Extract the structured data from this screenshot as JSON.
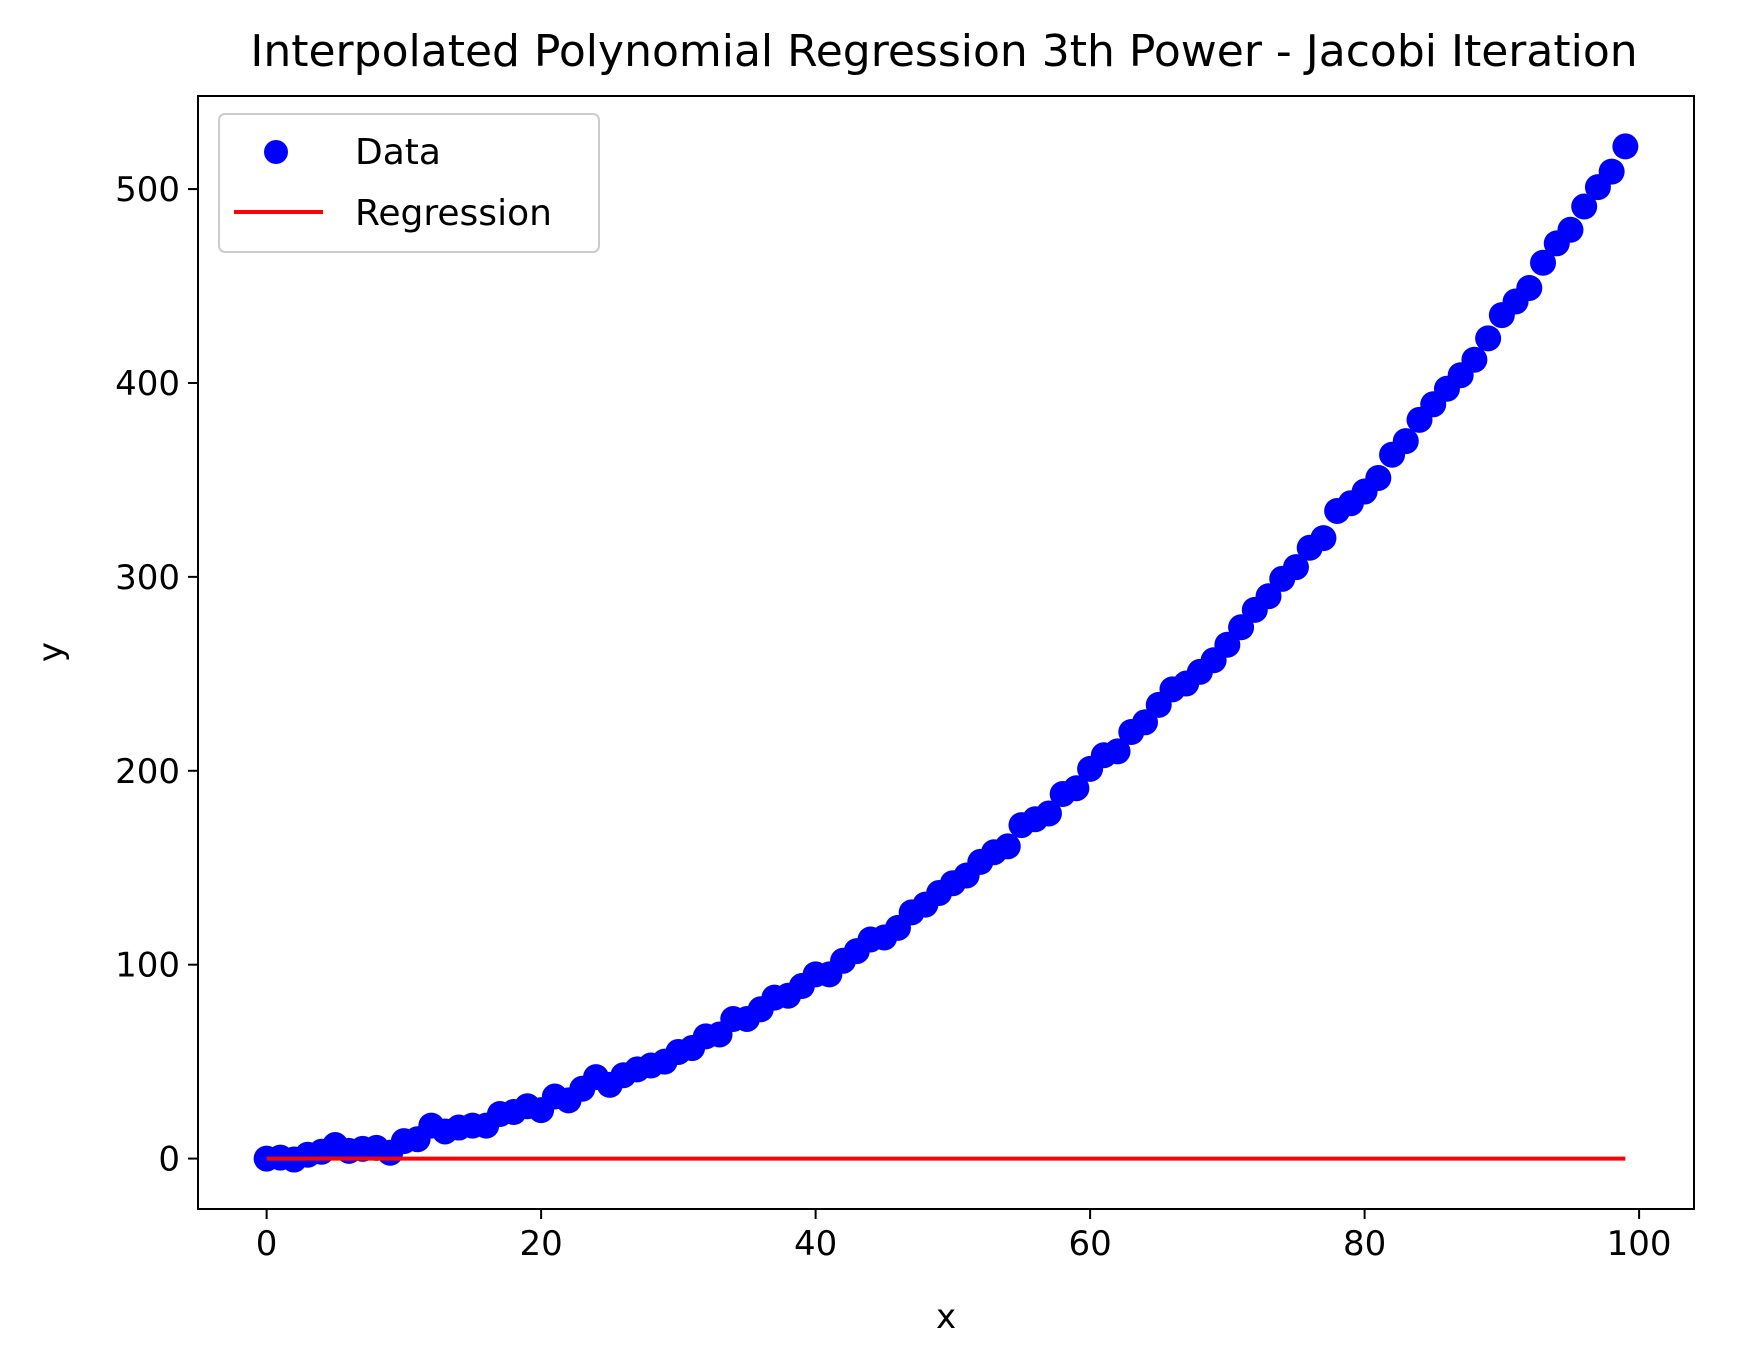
{
  "chart_data": {
    "type": "scatter",
    "title": "Interpolated Polynomial Regression 3th Power - Jacobi Iteration",
    "xlabel": "x",
    "ylabel": "y",
    "xlim": [
      -5,
      104
    ],
    "ylim": [
      -26,
      548
    ],
    "xticks": [
      0,
      20,
      40,
      60,
      80,
      100
    ],
    "yticks": [
      0,
      100,
      200,
      300,
      400,
      500
    ],
    "xtick_labels": [
      "0",
      "20",
      "40",
      "60",
      "80",
      "100"
    ],
    "ytick_labels": [
      "0",
      "100",
      "200",
      "300",
      "400",
      "500"
    ],
    "grid": false,
    "legend_position": "upper-left",
    "legend": [
      {
        "label": "Data",
        "kind": "marker",
        "color": "#0000ff"
      },
      {
        "label": "Regression",
        "kind": "line",
        "color": "#ff0000"
      }
    ],
    "series": [
      {
        "name": "Data",
        "kind": "scatter",
        "color": "#0000ff",
        "x": [
          0,
          1,
          2,
          3,
          4,
          5,
          6,
          7,
          8,
          9,
          10,
          11,
          12,
          13,
          14,
          15,
          16,
          17,
          18,
          19,
          20,
          21,
          22,
          23,
          24,
          25,
          26,
          27,
          28,
          29,
          30,
          31,
          32,
          33,
          34,
          35,
          36,
          37,
          38,
          39,
          40,
          41,
          42,
          43,
          44,
          45,
          46,
          47,
          48,
          49,
          50,
          51,
          52,
          53,
          54,
          55,
          56,
          57,
          58,
          59,
          60,
          61,
          62,
          63,
          64,
          65,
          66,
          67,
          68,
          69,
          70,
          71,
          72,
          73,
          74,
          75,
          76,
          77,
          78,
          79,
          80,
          81,
          82,
          83,
          84,
          85,
          86,
          87,
          88,
          89,
          90,
          91,
          92,
          93,
          94,
          95,
          96,
          97,
          98,
          99
        ],
        "y": [
          0,
          0.5,
          -0.5,
          2,
          3.5,
          7,
          4,
          5,
          5.5,
          3,
          9,
          10,
          17,
          14,
          16,
          17,
          17,
          23,
          24,
          27,
          25,
          32,
          30,
          36,
          42,
          38,
          43,
          46,
          48,
          50,
          55,
          57,
          63,
          64,
          72,
          72,
          77,
          83,
          84,
          89,
          95,
          95,
          102,
          107,
          113,
          114,
          119,
          127,
          131,
          137,
          142,
          146,
          153,
          158,
          161,
          172,
          175,
          178,
          188,
          191,
          201,
          208,
          210,
          220,
          225,
          234,
          242,
          245,
          251,
          257,
          265,
          274,
          283,
          290,
          299,
          305,
          315,
          320,
          334,
          338,
          344,
          351,
          363,
          370,
          381,
          389,
          397,
          404,
          412,
          423,
          435,
          442,
          449,
          462,
          472,
          479,
          491,
          501,
          509,
          522
        ]
      },
      {
        "name": "Regression",
        "kind": "line",
        "color": "#ff0000",
        "x": [
          0,
          99
        ],
        "y": [
          0,
          0
        ]
      }
    ]
  }
}
